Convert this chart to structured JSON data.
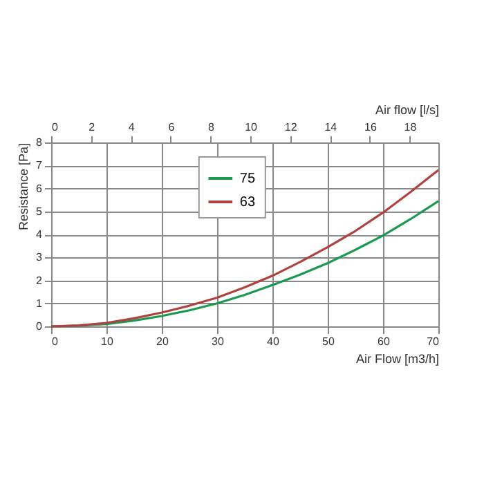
{
  "chart_data": {
    "type": "line",
    "xlabel": "Air Flow [m3/h]",
    "ylabel": "Resistance [Pa]",
    "x2label": "Air flow [l/s]",
    "x": [
      0,
      5,
      10,
      15,
      20,
      25,
      30,
      35,
      40,
      45,
      50,
      55,
      60,
      65,
      70
    ],
    "series": [
      {
        "name": "75",
        "color": "#1a9a50",
        "values": [
          0,
          0.03,
          0.1,
          0.25,
          0.45,
          0.7,
          1.0,
          1.37,
          1.8,
          2.25,
          2.75,
          3.33,
          3.95,
          4.67,
          5.45
        ]
      },
      {
        "name": "63",
        "color": "#b0413e",
        "values": [
          0,
          0.04,
          0.15,
          0.35,
          0.6,
          0.9,
          1.25,
          1.7,
          2.2,
          2.8,
          3.45,
          4.15,
          4.95,
          5.85,
          6.8
        ]
      }
    ],
    "xlim": [
      0,
      70
    ],
    "xticks": [
      0,
      10,
      20,
      30,
      40,
      50,
      60,
      70
    ],
    "x2lim": [
      0,
      19.44
    ],
    "x2ticks": [
      0,
      2,
      4,
      6,
      8,
      10,
      12,
      14,
      16,
      18
    ],
    "ylim": [
      0,
      8
    ],
    "yticks": [
      0,
      1,
      2,
      3,
      4,
      5,
      6,
      7,
      8
    ],
    "grid": true,
    "legend": "top",
    "line_style": "solid",
    "marker": "none"
  }
}
